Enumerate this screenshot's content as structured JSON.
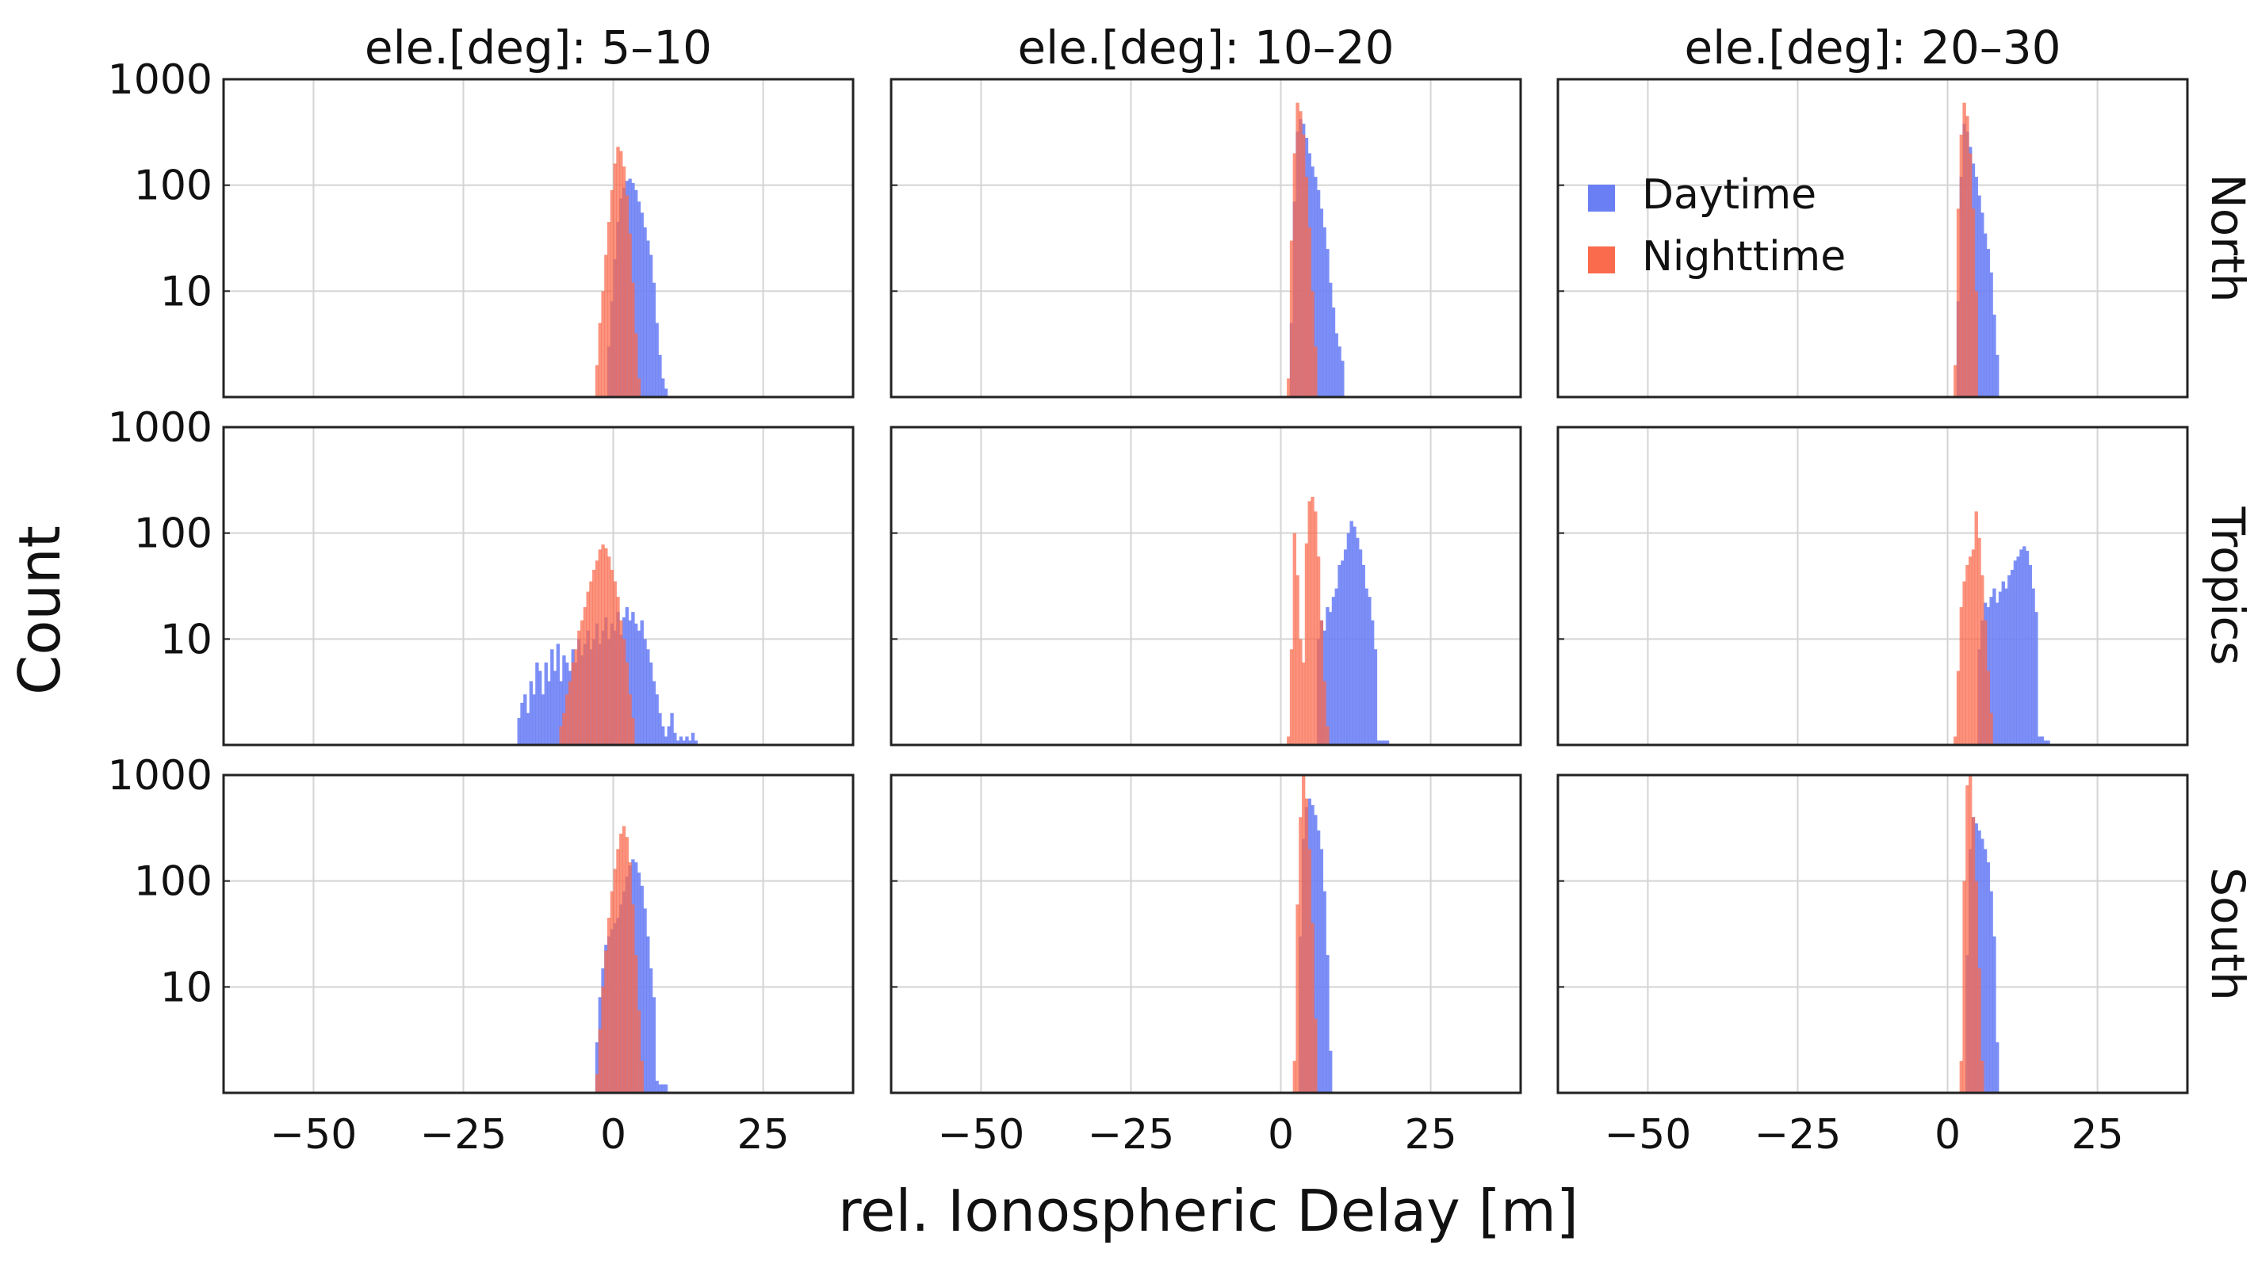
{
  "chart_data": {
    "type": "histogram",
    "layout": "3x3 facet grid",
    "xlabel": "rel. Ionospheric Delay [m]",
    "ylabel": "Count",
    "yscale": "log",
    "ylim": [
      1,
      1000
    ],
    "xlim": [
      -65,
      40
    ],
    "yticks": [
      10,
      100,
      1000
    ],
    "ytick_labels": [
      "10",
      "100",
      "1000"
    ],
    "xticks": [
      -50,
      -25,
      0,
      25
    ],
    "xtick_labels": [
      "−50",
      "−25",
      "0",
      "25"
    ],
    "columns": [
      "ele.[deg]: 5–10",
      "ele.[deg]: 10–20",
      "ele.[deg]: 20–30"
    ],
    "rows": [
      "North",
      "Tropics",
      "South"
    ],
    "legend": {
      "position": "top-right panel, upper-left",
      "entries": [
        {
          "name": "Daytime",
          "color": "#6b7ff5"
        },
        {
          "name": "Nighttime",
          "color": "#fa6a4c"
        }
      ]
    },
    "panels": [
      {
        "row": "North",
        "col": "ele.[deg]: 5–10",
        "series": [
          {
            "name": "Nighttime",
            "start": -3,
            "bin_width": 0.5,
            "counts": [
              2,
              5,
              10,
              22,
              45,
              90,
              160,
              230,
              210,
              150,
              80,
              35,
              12,
              4,
              1.5
            ]
          },
          {
            "name": "Daytime",
            "start": -1,
            "bin_width": 0.5,
            "counts": [
              3,
              8,
              20,
              45,
              75,
              95,
              110,
              115,
              105,
              90,
              70,
              55,
              40,
              30,
              22,
              12,
              5,
              2.5,
              1.5,
              1.2
            ]
          }
        ]
      },
      {
        "row": "North",
        "col": "ele.[deg]: 10–20",
        "series": [
          {
            "name": "Nighttime",
            "start": 1,
            "bin_width": 0.5,
            "counts": [
              1.5,
              30,
              200,
              600,
              500,
              300,
              120,
              40,
              10,
              3
            ]
          },
          {
            "name": "Daytime",
            "start": 1.5,
            "bin_width": 0.5,
            "counts": [
              5,
              70,
              320,
              420,
              380,
              280,
              200,
              150,
              120,
              90,
              60,
              40,
              25,
              12,
              7,
              4,
              3,
              2.2
            ]
          }
        ]
      },
      {
        "row": "North",
        "col": "ele.[deg]: 20–30",
        "series": [
          {
            "name": "Nighttime",
            "start": 1,
            "bin_width": 0.5,
            "counts": [
              2,
              60,
              300,
              600,
              450,
              200,
              60,
              10
            ]
          },
          {
            "name": "Daytime",
            "start": 1.5,
            "bin_width": 0.5,
            "counts": [
              8,
              120,
              380,
              320,
              230,
              160,
              120,
              80,
              55,
              35,
              25,
              15,
              6,
              2.5
            ]
          }
        ]
      },
      {
        "row": "Tropics",
        "col": "ele.[deg]: 5–10",
        "series": [
          {
            "name": "Nighttime",
            "start": -9,
            "bin_width": 0.5,
            "counts": [
              1.5,
              2,
              3,
              4,
              6,
              8,
              12,
              15,
              20,
              28,
              35,
              45,
              55,
              70,
              78,
              72,
              60,
              45,
              35,
              25,
              15,
              10,
              6,
              3,
              1.8
            ]
          },
          {
            "name": "Daytime",
            "start": -16,
            "bin_width": 0.5,
            "counts": [
              1.8,
              2.5,
              3,
              2,
              4,
              3,
              6,
              5,
              3,
              6,
              4,
              8,
              5,
              9,
              4,
              7,
              6,
              5,
              8,
              6,
              10,
              7,
              9,
              12,
              8,
              10,
              14,
              9,
              12,
              16,
              10,
              14,
              12,
              18,
              11,
              16,
              20,
              15,
              18,
              14,
              12,
              15,
              10,
              8,
              6,
              4,
              3,
              2,
              1.5,
              1.2,
              1.5,
              2,
              1.3,
              1.1,
              1.2,
              1.1,
              1.2,
              1.1,
              1.3,
              1.1
            ]
          }
        ]
      },
      {
        "row": "Tropics",
        "col": "ele.[deg]: 10–20",
        "series": [
          {
            "name": "Nighttime",
            "start": 1,
            "bin_width": 0.5,
            "counts": [
              1.2,
              8,
              100,
              40,
              10,
              6,
              80,
              200,
              220,
              160,
              60,
              15,
              4,
              1.5
            ]
          },
          {
            "name": "Daytime",
            "start": 6,
            "bin_width": 0.5,
            "counts": [
              10,
              15,
              12,
              20,
              18,
              25,
              30,
              50,
              55,
              70,
              100,
              130,
              115,
              90,
              70,
              50,
              30,
              25,
              15,
              8,
              1.1,
              1.1,
              1.1,
              1.1
            ]
          }
        ]
      },
      {
        "row": "Tropics",
        "col": "ele.[deg]: 20–30",
        "series": [
          {
            "name": "Nighttime",
            "start": 1,
            "bin_width": 0.5,
            "counts": [
              1.2,
              5,
              20,
              35,
              50,
              60,
              70,
              160,
              90,
              40,
              15,
              5,
              2
            ]
          },
          {
            "name": "Daytime",
            "start": 5,
            "bin_width": 0.5,
            "counts": [
              8,
              15,
              22,
              20,
              25,
              30,
              22,
              28,
              35,
              30,
              40,
              45,
              55,
              60,
              70,
              75,
              68,
              50,
              30,
              18,
              1.2,
              1.2,
              1.1,
              1.1
            ]
          }
        ]
      },
      {
        "row": "South",
        "col": "ele.[deg]: 5–10",
        "series": [
          {
            "name": "Nighttime",
            "start": -3,
            "bin_width": 0.5,
            "counts": [
              1.5,
              4,
              10,
              22,
              45,
              80,
              130,
              200,
              280,
              330,
              260,
              150,
              60,
              20,
              6,
              2
            ]
          },
          {
            "name": "Daytime",
            "start": -3,
            "bin_width": 0.5,
            "counts": [
              3,
              8,
              15,
              25,
              30,
              35,
              40,
              45,
              60,
              80,
              110,
              140,
              160,
              150,
              120,
              90,
              55,
              30,
              15,
              8,
              1.3,
              1.2,
              1.2,
              1.2
            ]
          }
        ]
      },
      {
        "row": "South",
        "col": "ele.[deg]: 10–20",
        "series": [
          {
            "name": "Nighttime",
            "start": 2,
            "bin_width": 0.5,
            "counts": [
              2,
              60,
              400,
              1000,
              600,
              200,
              40,
              5
            ]
          },
          {
            "name": "Daytime",
            "start": 3,
            "bin_width": 0.5,
            "counts": [
              30,
              250,
              500,
              600,
              520,
              420,
              300,
              200,
              80,
              20,
              2.5
            ]
          }
        ]
      },
      {
        "row": "South",
        "col": "ele.[deg]: 20–30",
        "series": [
          {
            "name": "Nighttime",
            "start": 2,
            "bin_width": 0.5,
            "counts": [
              2,
              100,
              800,
              1000,
              400,
              100,
              15,
              2
            ]
          },
          {
            "name": "Daytime",
            "start": 3,
            "bin_width": 0.5,
            "counts": [
              20,
              200,
              400,
              350,
              300,
              250,
              200,
              150,
              80,
              30,
              3
            ]
          }
        ]
      }
    ]
  }
}
